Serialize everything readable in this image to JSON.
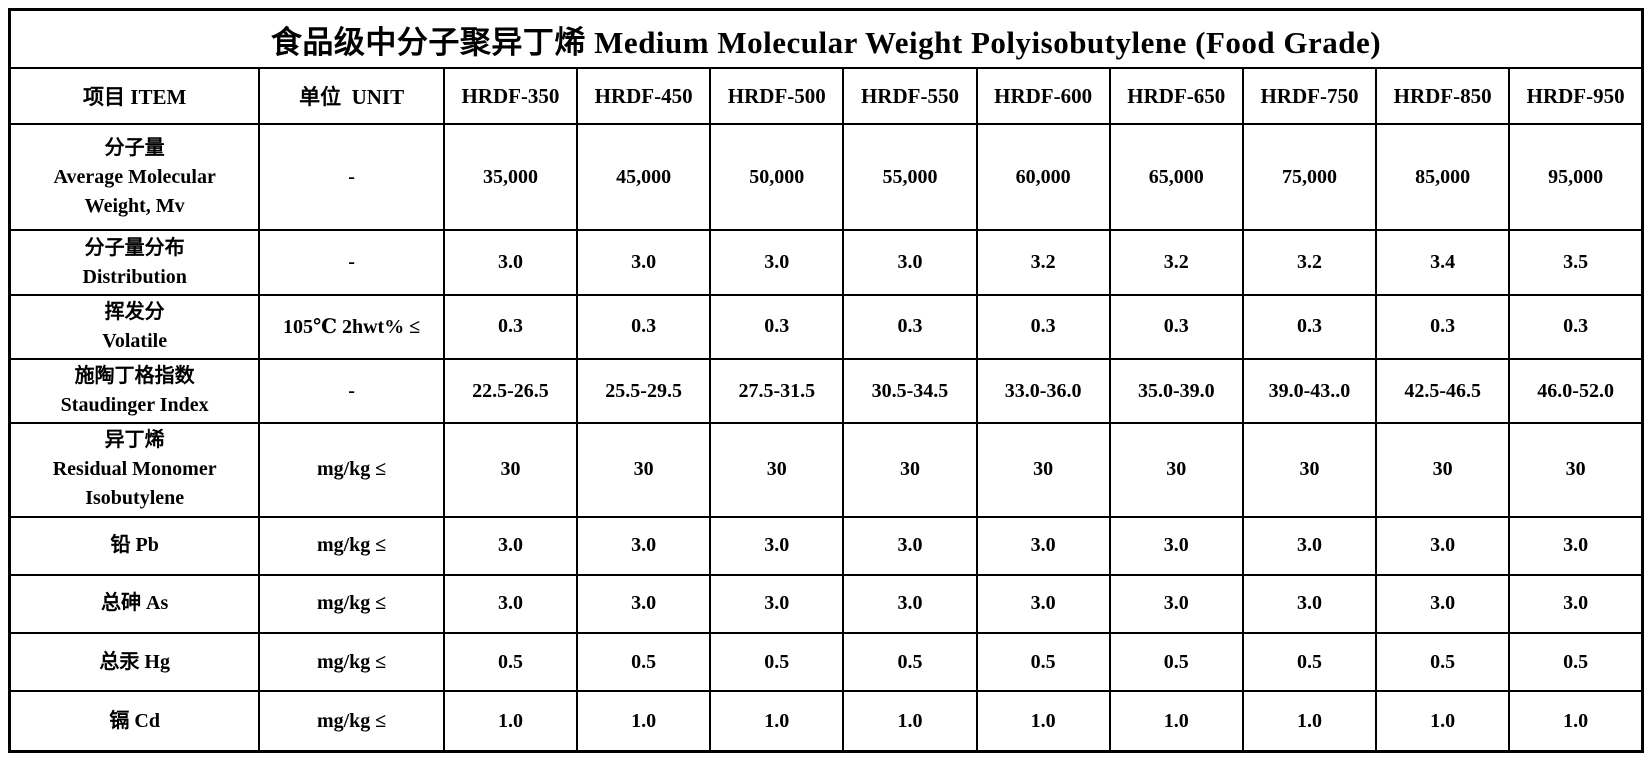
{
  "title": "食品级中分子聚异丁烯 Medium Molecular Weight Polyisobutylene (Food Grade)",
  "colors": {
    "text": "#000000",
    "border": "#000000",
    "background": "#ffffff"
  },
  "table": {
    "header": {
      "item": "项目 ITEM",
      "unit": "单位  UNIT",
      "grades": [
        "HRDF-350",
        "HRDF-450",
        "HRDF-500",
        "HRDF-550",
        "HRDF-600",
        "HRDF-650",
        "HRDF-750",
        "HRDF-850",
        "HRDF-950"
      ]
    },
    "rows": [
      {
        "item_lines": [
          "分子量",
          "Average Molecular",
          "Weight, Mv"
        ],
        "unit": "-",
        "values": [
          "35,000",
          "45,000",
          "50,000",
          "55,000",
          "60,000",
          "65,000",
          "75,000",
          "85,000",
          "95,000"
        ]
      },
      {
        "item_lines": [
          "分子量分布",
          "Distribution"
        ],
        "unit": "-",
        "values": [
          "3.0",
          "3.0",
          "3.0",
          "3.0",
          "3.2",
          "3.2",
          "3.2",
          "3.4",
          "3.5"
        ]
      },
      {
        "item_lines": [
          "挥发分",
          "Volatile"
        ],
        "unit": "105℃ 2hwt% ≤",
        "values": [
          "0.3",
          "0.3",
          "0.3",
          "0.3",
          "0.3",
          "0.3",
          "0.3",
          "0.3",
          "0.3"
        ]
      },
      {
        "item_lines": [
          "施陶丁格指数",
          "Staudinger Index"
        ],
        "unit": "-",
        "values": [
          "22.5-26.5",
          "25.5-29.5",
          "27.5-31.5",
          "30.5-34.5",
          "33.0-36.0",
          "35.0-39.0",
          "39.0-43..0",
          "42.5-46.5",
          "46.0-52.0"
        ]
      },
      {
        "item_lines": [
          "异丁烯",
          "Residual Monomer",
          "Isobutylene"
        ],
        "unit": "mg/kg ≤",
        "values": [
          "30",
          "30",
          "30",
          "30",
          "30",
          "30",
          "30",
          "30",
          "30"
        ]
      },
      {
        "item_lines": [
          "铅 Pb"
        ],
        "unit": "mg/kg ≤",
        "values": [
          "3.0",
          "3.0",
          "3.0",
          "3.0",
          "3.0",
          "3.0",
          "3.0",
          "3.0",
          "3.0"
        ]
      },
      {
        "item_lines": [
          "总砷 As"
        ],
        "unit": "mg/kg ≤",
        "values": [
          "3.0",
          "3.0",
          "3.0",
          "3.0",
          "3.0",
          "3.0",
          "3.0",
          "3.0",
          "3.0"
        ]
      },
      {
        "item_lines": [
          "总汞 Hg"
        ],
        "unit": "mg/kg ≤",
        "values": [
          "0.5",
          "0.5",
          "0.5",
          "0.5",
          "0.5",
          "0.5",
          "0.5",
          "0.5",
          "0.5"
        ]
      },
      {
        "item_lines": [
          "镉 Cd"
        ],
        "unit": "mg/kg ≤",
        "values": [
          "1.0",
          "1.0",
          "1.0",
          "1.0",
          "1.0",
          "1.0",
          "1.0",
          "1.0",
          "1.0"
        ]
      }
    ]
  }
}
